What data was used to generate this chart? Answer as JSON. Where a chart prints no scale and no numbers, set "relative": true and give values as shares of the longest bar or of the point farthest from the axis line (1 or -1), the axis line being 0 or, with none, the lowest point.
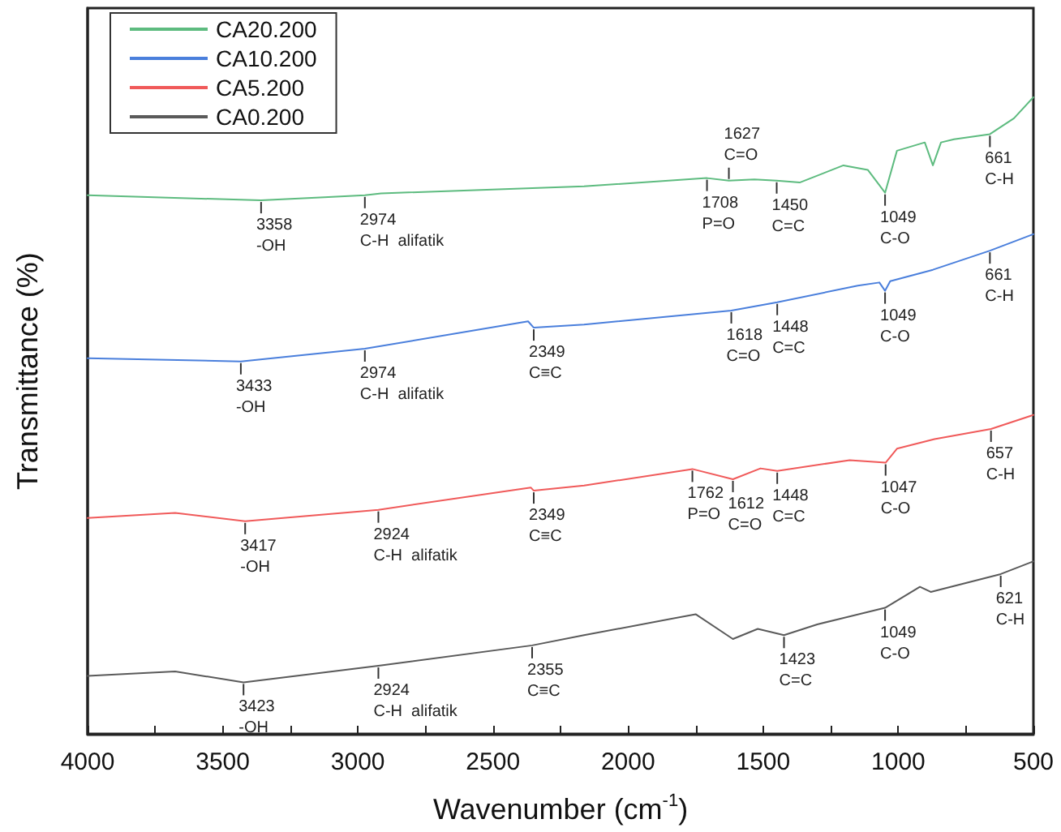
{
  "chart_data": {
    "type": "line",
    "relative": true,
    "xlabel": "Wavenumber (cm$^{-1}$)",
    "ylabel": "Transmittance (%)",
    "xlim": [
      4000,
      500
    ],
    "xticks": [
      4000,
      3500,
      3000,
      2500,
      2000,
      1500,
      1000,
      500
    ],
    "grid": false,
    "legend": "top left",
    "marker": "none",
    "line_style": "solid",
    "series": [
      {
        "name": "CA20.200",
        "color": "#5dbb7f",
        "x": [
          4000,
          3358,
          3124,
          2974,
          2914,
          2163,
          1708,
          1627,
          1533,
          1450,
          1365,
          1203,
          1113,
          1049,
          1005,
          902,
          872,
          842,
          794,
          661,
          572,
          500
        ],
        "values": [
          0.846,
          0.838,
          0.843,
          0.846,
          0.849,
          0.86,
          0.873,
          0.869,
          0.871,
          0.869,
          0.866,
          0.893,
          0.886,
          0.85,
          0.916,
          0.929,
          0.893,
          0.929,
          0.934,
          0.942,
          0.967,
          1
        ]
      },
      {
        "name": "CA10.200",
        "color": "#4a7fdc",
        "x": [
          4000,
          3433,
          2974,
          2370,
          2349,
          2163,
          1618,
          1448,
          1150,
          1070,
          1049,
          1030,
          872,
          661,
          500
        ],
        "values": [
          0.59,
          0.585,
          0.605,
          0.648,
          0.638,
          0.643,
          0.665,
          0.678,
          0.704,
          0.709,
          0.696,
          0.711,
          0.729,
          0.759,
          0.785
        ]
      },
      {
        "name": "CA5.200",
        "color": "#f05a5a",
        "x": [
          4000,
          3676,
          3417,
          2924,
          2360,
          2349,
          2163,
          1762,
          1612,
          1510,
          1448,
          1180,
          1047,
          1005,
          866,
          657,
          500
        ],
        "values": [
          0.339,
          0.347,
          0.334,
          0.352,
          0.387,
          0.382,
          0.39,
          0.416,
          0.4,
          0.417,
          0.413,
          0.43,
          0.426,
          0.448,
          0.463,
          0.479,
          0.501
        ]
      },
      {
        "name": "CA0.200",
        "color": "#5a5a5a",
        "x": [
          4000,
          3676,
          3423,
          2924,
          2355,
          2163,
          1750,
          1612,
          1520,
          1423,
          1300,
          1049,
          920,
          880,
          621,
          500
        ],
        "values": [
          0.091,
          0.098,
          0.081,
          0.107,
          0.139,
          0.155,
          0.188,
          0.149,
          0.165,
          0.155,
          0.172,
          0.198,
          0.231,
          0.223,
          0.251,
          0.271
        ]
      }
    ],
    "annotations": [
      {
        "text": "3358\n-OH",
        "x": 3358,
        "y": 0.838
      },
      {
        "text": "2974\nC-H  alifatik",
        "x": 2974,
        "y": 0.846
      },
      {
        "text": "1708\nP=O",
        "x": 1708,
        "y": 0.873
      },
      {
        "text": "1627\nC=O",
        "x": 1627,
        "y": 0.869
      },
      {
        "text": "1450\nC=C",
        "x": 1450,
        "y": 0.869
      },
      {
        "text": "1049\nC-O",
        "x": 1049,
        "y": 0.85
      },
      {
        "text": "661\nC-H",
        "x": 661,
        "y": 0.942
      },
      {
        "text": "3433\n-OH",
        "x": 3433,
        "y": 0.585
      },
      {
        "text": "2974\nC-H  alifatik",
        "x": 2974,
        "y": 0.605
      },
      {
        "text": "2349\nC≡C",
        "x": 2349,
        "y": 0.638
      },
      {
        "text": "1618\nC=O",
        "x": 1618,
        "y": 0.665
      },
      {
        "text": "1448\nC=C",
        "x": 1448,
        "y": 0.678
      },
      {
        "text": "1049\nC-O",
        "x": 1049,
        "y": 0.696
      },
      {
        "text": "661\nC-H",
        "x": 661,
        "y": 0.759
      },
      {
        "text": "3417\n-OH",
        "x": 3417,
        "y": 0.334
      },
      {
        "text": "2924\nC-H  alifatik",
        "x": 2924,
        "y": 0.352
      },
      {
        "text": "2349\nC≡C",
        "x": 2349,
        "y": 0.382
      },
      {
        "text": "1762\nP=O",
        "x": 1762,
        "y": 0.416
      },
      {
        "text": "1612\nC=O",
        "x": 1612,
        "y": 0.4
      },
      {
        "text": "1448\nC=C",
        "x": 1448,
        "y": 0.413
      },
      {
        "text": "1047\nC-O",
        "x": 1047,
        "y": 0.426
      },
      {
        "text": "657\nC-H",
        "x": 657,
        "y": 0.479
      },
      {
        "text": "3423\n-OH",
        "x": 3423,
        "y": 0.081
      },
      {
        "text": "2924\nC-H  alifatik",
        "x": 2924,
        "y": 0.107
      },
      {
        "text": "2355\nC≡C",
        "x": 2355,
        "y": 0.139
      },
      {
        "text": "1423\nC=C",
        "x": 1423,
        "y": 0.155
      },
      {
        "text": "1049\nC-O",
        "x": 1049,
        "y": 0.198
      },
      {
        "text": "621\nC-H",
        "x": 621,
        "y": 0.251
      }
    ]
  }
}
